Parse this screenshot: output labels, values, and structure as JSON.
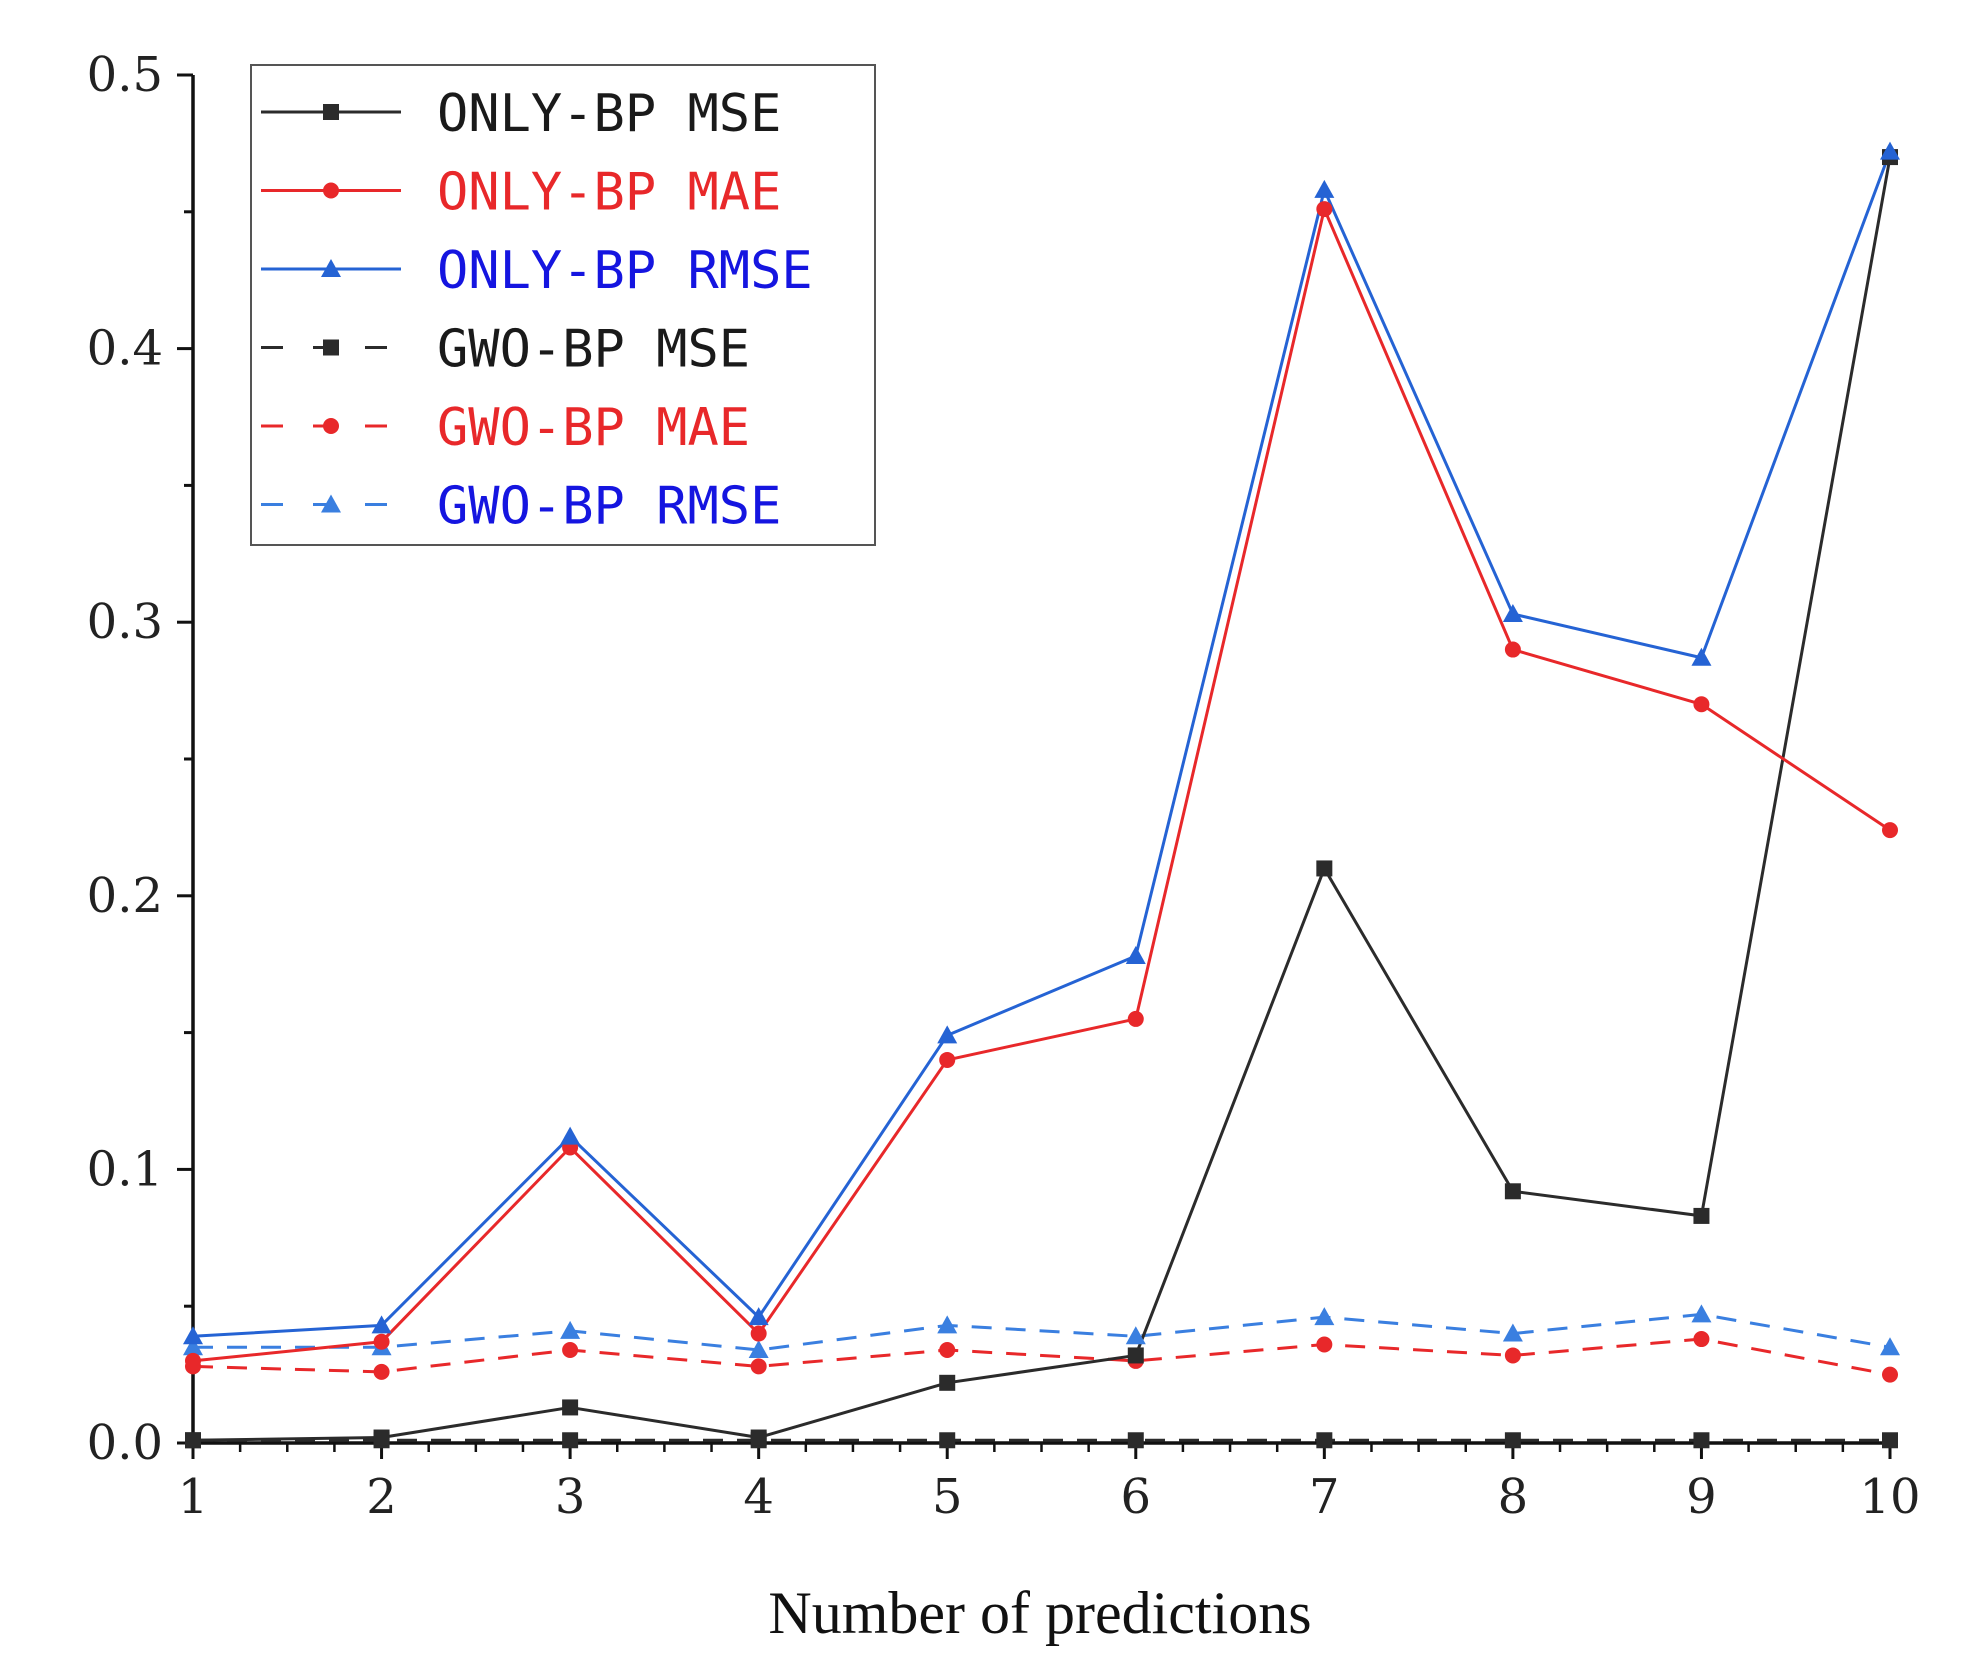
{
  "chart_data": {
    "type": "line",
    "title": "",
    "xlabel": "Number of predictions",
    "ylabel": "",
    "x": [
      1,
      2,
      3,
      4,
      5,
      6,
      7,
      8,
      9,
      10
    ],
    "xticks": [
      "1",
      "2",
      "3",
      "4",
      "5",
      "6",
      "7",
      "8",
      "9",
      "10"
    ],
    "xlim": [
      1,
      10
    ],
    "ylim": [
      0,
      0.5
    ],
    "yticks": [
      "0.0",
      "0.1",
      "0.2",
      "0.3",
      "0.4",
      "0.5"
    ],
    "legend_position": "top-left",
    "series": [
      {
        "name": "ONLY-BP MSE",
        "color": "#2b2b2b",
        "style": "solid",
        "marker": "square",
        "values": [
          0.001,
          0.002,
          0.013,
          0.002,
          0.022,
          0.032,
          0.21,
          0.092,
          0.083,
          0.47
        ]
      },
      {
        "name": "ONLY-BP MAE",
        "color": "#e8282a",
        "style": "solid",
        "marker": "circle",
        "values": [
          0.03,
          0.037,
          0.108,
          0.04,
          0.14,
          0.155,
          0.451,
          0.29,
          0.27,
          0.224
        ]
      },
      {
        "name": "ONLY-BP RMSE",
        "color": "#2563d4",
        "style": "solid",
        "marker": "triangle",
        "values": [
          0.039,
          0.043,
          0.112,
          0.046,
          0.149,
          0.178,
          0.458,
          0.303,
          0.287,
          0.472
        ]
      },
      {
        "name": "GWO-BP MSE",
        "color": "#2b2b2b",
        "style": "dashed",
        "marker": "square",
        "values": [
          0.001,
          0.001,
          0.001,
          0.001,
          0.001,
          0.001,
          0.001,
          0.001,
          0.001,
          0.001
        ]
      },
      {
        "name": "GWO-BP MAE",
        "color": "#e8282a",
        "style": "dashed",
        "marker": "circle",
        "values": [
          0.028,
          0.026,
          0.034,
          0.028,
          0.034,
          0.03,
          0.036,
          0.032,
          0.038,
          0.025
        ]
      },
      {
        "name": "GWO-BP RMSE",
        "color": "#3a7fe0",
        "style": "dashed",
        "marker": "triangle",
        "values": [
          0.035,
          0.035,
          0.041,
          0.034,
          0.043,
          0.039,
          0.046,
          0.04,
          0.047,
          0.035
        ]
      }
    ],
    "legend_text_colors": [
      "#1a1a1a",
      "#e8282a",
      "#1515e0",
      "#1a1a1a",
      "#e8282a",
      "#1515e0"
    ]
  }
}
